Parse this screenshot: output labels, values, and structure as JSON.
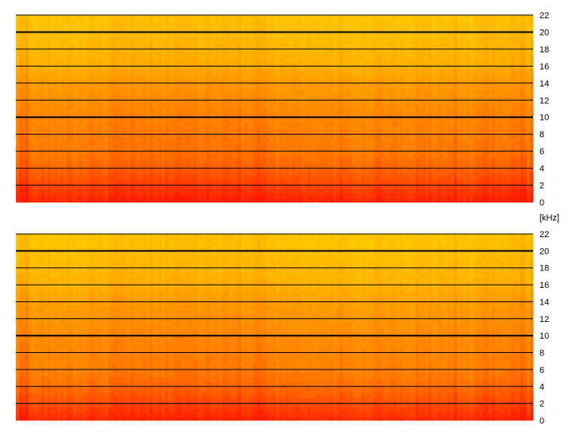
{
  "unit_label": "[kHz]",
  "chart_data": [
    {
      "type": "heatmap",
      "title": "",
      "xlabel": "",
      "ylabel": "",
      "ylim": [
        0,
        22
      ],
      "yticks": [
        "0",
        "2",
        "4",
        "6",
        "8",
        "10",
        "12",
        "14",
        "16",
        "18",
        "20",
        "22"
      ],
      "major_gridlines": [
        10,
        20
      ],
      "grid": true,
      "colormap": {
        "low": "#ff1a00",
        "mid": "#ff7f00",
        "high": "#ffd000"
      },
      "intensity_profile": [
        {
          "khz": 0,
          "level": 0.05
        },
        {
          "khz": 2,
          "level": 0.22
        },
        {
          "khz": 4,
          "level": 0.38
        },
        {
          "khz": 6,
          "level": 0.48
        },
        {
          "khz": 10,
          "level": 0.55
        },
        {
          "khz": 14,
          "level": 0.68
        },
        {
          "khz": 16,
          "level": 0.8
        },
        {
          "khz": 20,
          "level": 0.9
        },
        {
          "khz": 22,
          "level": 0.92
        }
      ]
    },
    {
      "type": "heatmap",
      "title": "",
      "xlabel": "",
      "ylabel": "",
      "ylim": [
        0,
        22
      ],
      "yticks": [
        "0",
        "2",
        "4",
        "6",
        "8",
        "10",
        "12",
        "14",
        "16",
        "18",
        "20",
        "22"
      ],
      "major_gridlines": [
        10,
        20
      ],
      "grid": true,
      "colormap": {
        "low": "#ff1a00",
        "mid": "#ff7f00",
        "high": "#ffd000"
      },
      "intensity_profile": [
        {
          "khz": 0,
          "level": 0.08
        },
        {
          "khz": 2,
          "level": 0.26
        },
        {
          "khz": 4,
          "level": 0.42
        },
        {
          "khz": 6,
          "level": 0.52
        },
        {
          "khz": 10,
          "level": 0.58
        },
        {
          "khz": 14,
          "level": 0.7
        },
        {
          "khz": 16,
          "level": 0.82
        },
        {
          "khz": 20,
          "level": 0.91
        },
        {
          "khz": 22,
          "level": 0.93
        }
      ]
    }
  ]
}
